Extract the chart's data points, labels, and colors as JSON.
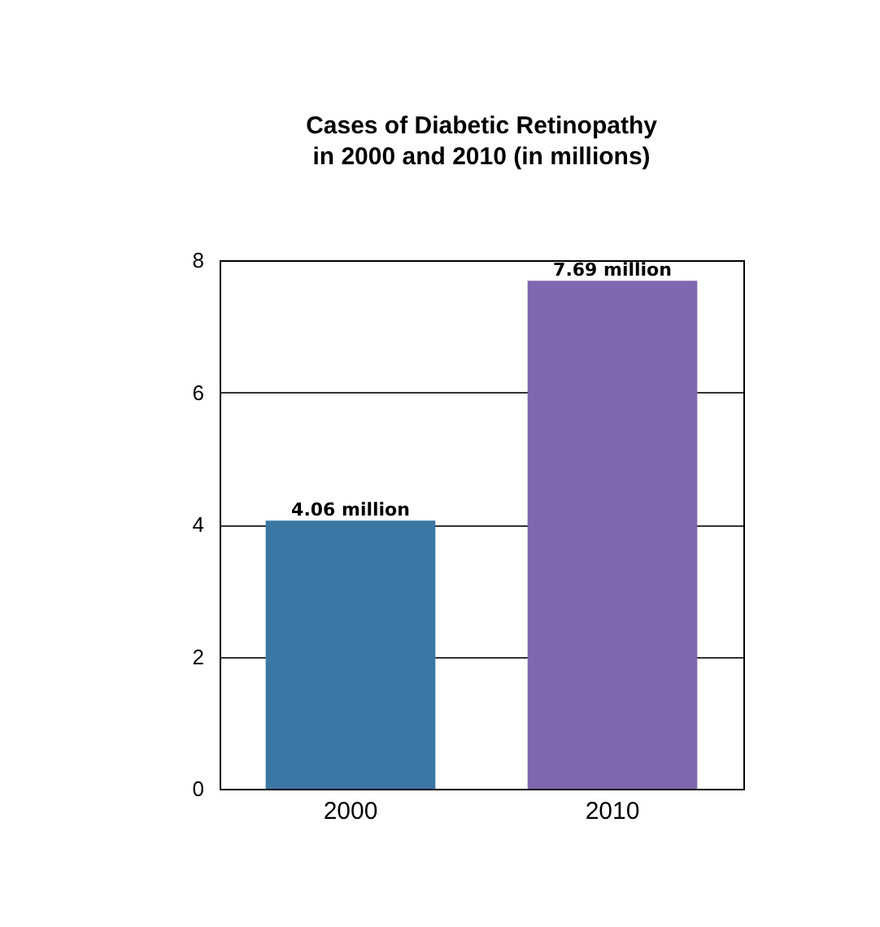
{
  "chart_data": {
    "type": "bar",
    "title": "Cases of Diabetic Retinopathy\nin 2000 and 2010 (in millions)",
    "categories": [
      "2000",
      "2010"
    ],
    "values": [
      4.06,
      7.69
    ],
    "colors": [
      "#3b77a5",
      "#8067af"
    ],
    "value_labels": [
      "4.06 million",
      "7.69 million"
    ],
    "ylim": [
      0,
      8
    ],
    "yticks": [
      0,
      2,
      4,
      6,
      8
    ],
    "grid": "y"
  }
}
